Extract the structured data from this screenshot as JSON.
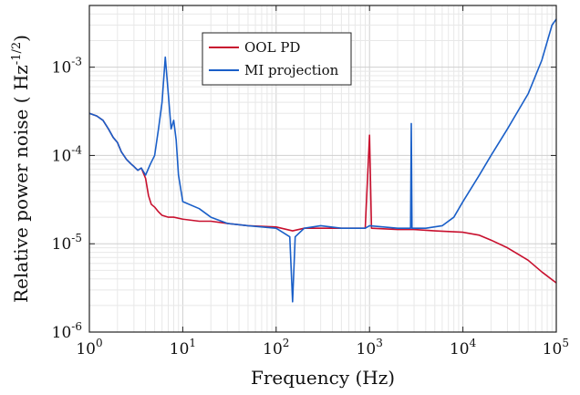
{
  "chart_data": {
    "type": "line",
    "xlabel": "Frequency (Hz)",
    "ylabel": "Relative power noise ( Hz",
    "ylabel_exponent": "-1/2",
    "ylabel_close": ")",
    "x_scale": "log",
    "y_scale": "log",
    "xlim": [
      1,
      100000
    ],
    "ylim": [
      1e-06,
      0.005
    ],
    "grid": true,
    "legend_position": "top-center",
    "x_ticks": [
      {
        "base": "10",
        "exp": "0",
        "value": 1
      },
      {
        "base": "10",
        "exp": "1",
        "value": 10
      },
      {
        "base": "10",
        "exp": "2",
        "value": 100
      },
      {
        "base": "10",
        "exp": "3",
        "value": 1000
      },
      {
        "base": "10",
        "exp": "4",
        "value": 10000
      },
      {
        "base": "10",
        "exp": "5",
        "value": 100000
      }
    ],
    "y_ticks": [
      {
        "base": "10",
        "exp": "-6",
        "value": 1e-06
      },
      {
        "base": "10",
        "exp": "-5",
        "value": 1e-05
      },
      {
        "base": "10",
        "exp": "-4",
        "value": 0.0001
      },
      {
        "base": "10",
        "exp": "-3",
        "value": 0.001
      }
    ],
    "series": [
      {
        "name": "OOL PD",
        "color": "#c8102e",
        "points": [
          [
            1,
            0.0003
          ],
          [
            1.2,
            0.00028
          ],
          [
            1.4,
            0.00025
          ],
          [
            1.6,
            0.0002
          ],
          [
            1.8,
            0.00016
          ],
          [
            2.0,
            0.00014
          ],
          [
            2.2,
            0.00011
          ],
          [
            2.5,
            9e-05
          ],
          [
            2.8,
            8e-05
          ],
          [
            3.0,
            7.5e-05
          ],
          [
            3.3,
            6.8e-05
          ],
          [
            3.6,
            7.2e-05
          ],
          [
            4.0,
            5.5e-05
          ],
          [
            4.3,
            3.5e-05
          ],
          [
            4.6,
            2.8e-05
          ],
          [
            5.0,
            2.6e-05
          ],
          [
            5.5,
            2.3e-05
          ],
          [
            6.0,
            2.1e-05
          ],
          [
            7.0,
            2e-05
          ],
          [
            8.0,
            2e-05
          ],
          [
            10,
            1.9e-05
          ],
          [
            15,
            1.8e-05
          ],
          [
            20,
            1.8e-05
          ],
          [
            30,
            1.7e-05
          ],
          [
            50,
            1.6e-05
          ],
          [
            100,
            1.55e-05
          ],
          [
            150,
            1.4e-05
          ],
          [
            200,
            1.5e-05
          ],
          [
            300,
            1.5e-05
          ],
          [
            500,
            1.5e-05
          ],
          [
            900,
            1.5e-05
          ],
          [
            1000,
            0.00017
          ],
          [
            1050,
            1.5e-05
          ],
          [
            2000,
            1.45e-05
          ],
          [
            3000,
            1.45e-05
          ],
          [
            5000,
            1.4e-05
          ],
          [
            10000,
            1.35e-05
          ],
          [
            15000,
            1.25e-05
          ],
          [
            20000,
            1.1e-05
          ],
          [
            30000,
            9e-06
          ],
          [
            40000,
            7.5e-06
          ],
          [
            50000,
            6.5e-06
          ],
          [
            70000,
            4.8e-06
          ],
          [
            100000,
            3.6e-06
          ]
        ]
      },
      {
        "name": "MI projection",
        "color": "#1a5fc8",
        "points": [
          [
            1,
            0.0003
          ],
          [
            1.2,
            0.00028
          ],
          [
            1.4,
            0.00025
          ],
          [
            1.6,
            0.0002
          ],
          [
            1.8,
            0.00016
          ],
          [
            2.0,
            0.00014
          ],
          [
            2.2,
            0.00011
          ],
          [
            2.5,
            9e-05
          ],
          [
            2.8,
            8e-05
          ],
          [
            3.0,
            7.5e-05
          ],
          [
            3.3,
            6.8e-05
          ],
          [
            3.6,
            7.2e-05
          ],
          [
            4.0,
            6e-05
          ],
          [
            4.5,
            8e-05
          ],
          [
            5.0,
            0.0001
          ],
          [
            5.5,
            0.0002
          ],
          [
            6.0,
            0.0004
          ],
          [
            6.5,
            0.0013
          ],
          [
            7.0,
            0.0005
          ],
          [
            7.5,
            0.0002
          ],
          [
            8.0,
            0.00025
          ],
          [
            8.5,
            0.00015
          ],
          [
            9.0,
            6e-05
          ],
          [
            10,
            3e-05
          ],
          [
            15,
            2.5e-05
          ],
          [
            20,
            2e-05
          ],
          [
            30,
            1.7e-05
          ],
          [
            50,
            1.6e-05
          ],
          [
            100,
            1.5e-05
          ],
          [
            140,
            1.2e-05
          ],
          [
            150,
            2.2e-06
          ],
          [
            160,
            1.2e-05
          ],
          [
            200,
            1.5e-05
          ],
          [
            300,
            1.6e-05
          ],
          [
            500,
            1.5e-05
          ],
          [
            900,
            1.5e-05
          ],
          [
            1000,
            1.6e-05
          ],
          [
            2000,
            1.5e-05
          ],
          [
            2750,
            1.5e-05
          ],
          [
            2800,
            0.00023
          ],
          [
            2850,
            1.5e-05
          ],
          [
            4000,
            1.5e-05
          ],
          [
            6000,
            1.6e-05
          ],
          [
            8000,
            2e-05
          ],
          [
            10000,
            3e-05
          ],
          [
            15000,
            6e-05
          ],
          [
            20000,
            0.0001
          ],
          [
            30000,
            0.0002
          ],
          [
            50000,
            0.0005
          ],
          [
            70000,
            0.0012
          ],
          [
            90000,
            0.003
          ],
          [
            100000,
            0.0035
          ]
        ]
      }
    ]
  }
}
